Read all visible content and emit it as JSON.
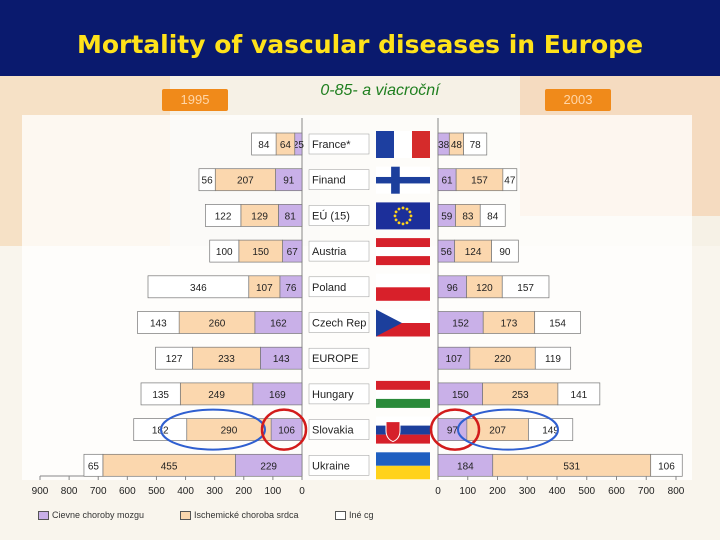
{
  "title": "Mortality of vascular diseases in Europe",
  "subtitle": "0-85- a viacroční",
  "year_left": "1995",
  "year_right": "2003",
  "colors": {
    "cerebro": "#c9b0e8",
    "ischemic": "#fbd7ae",
    "other": "#ffffff",
    "title_bg": "#0a1a6e",
    "title_fg": "#ffe21a",
    "highlight_red": "#d21b1b",
    "highlight_blue": "#2f5fd0"
  },
  "legend": [
    {
      "label": "Cievne choroby mozgu",
      "color": "#c9b0e8"
    },
    {
      "label": "Ischemické choroba srdca",
      "color": "#fbd7ae"
    },
    {
      "label": "Iné cg",
      "color": "#ffffff"
    }
  ],
  "chart_data": {
    "type": "bar",
    "orientation": "horizontal-stacked-butterfly",
    "categories": [
      "France*",
      "Finand",
      "EÚ (15)",
      "Austria",
      "Poland",
      "Czech Rep",
      "EUROPE",
      "Hungary",
      "Slovakia",
      "Ukraine"
    ],
    "flags": [
      "france",
      "finland",
      "eu",
      "austria",
      "poland",
      "czech",
      "none",
      "hungary",
      "slovakia",
      "ukraine"
    ],
    "series_colors": [
      "#c9b0e8",
      "#fbd7ae",
      "#ffffff"
    ],
    "left": {
      "year": "1995",
      "xlim": [
        900,
        0
      ],
      "ticks": [
        "900",
        "800",
        "700",
        "600",
        "500",
        "400",
        "300",
        "200",
        "100",
        "0"
      ],
      "values": [
        {
          "cerebro": 25,
          "ischemic": 64,
          "other": 84
        },
        {
          "cerebro": 91,
          "ischemic": 207,
          "other": 56
        },
        {
          "cerebro": 81,
          "ischemic": 129,
          "other": 122
        },
        {
          "cerebro": 67,
          "ischemic": 150,
          "other": 100
        },
        {
          "cerebro": 76,
          "ischemic": 107,
          "other": 346
        },
        {
          "cerebro": 162,
          "ischemic": 260,
          "other": 143
        },
        {
          "cerebro": 143,
          "ischemic": 233,
          "other": 127
        },
        {
          "cerebro": 169,
          "ischemic": 249,
          "other": 135
        },
        {
          "cerebro": 106,
          "ischemic": 290,
          "other": 182
        },
        {
          "cerebro": 229,
          "ischemic": 455,
          "other": 65
        }
      ]
    },
    "right": {
      "year": "2003",
      "xlim": [
        0,
        800
      ],
      "ticks": [
        "0",
        "100",
        "200",
        "300",
        "400",
        "500",
        "600",
        "700",
        "800"
      ],
      "values": [
        {
          "cerebro": 38,
          "ischemic": 48,
          "other": 78
        },
        {
          "cerebro": 61,
          "ischemic": 157,
          "other": 47
        },
        {
          "cerebro": 59,
          "ischemic": 83,
          "other": 84
        },
        {
          "cerebro": 56,
          "ischemic": 124,
          "other": 90
        },
        {
          "cerebro": 96,
          "ischemic": 120,
          "other": 157
        },
        {
          "cerebro": 152,
          "ischemic": 173,
          "other": 154
        },
        {
          "cerebro": 107,
          "ischemic": 220,
          "other": 119
        },
        {
          "cerebro": 150,
          "ischemic": 253,
          "other": 141
        },
        {
          "cerebro": 97,
          "ischemic": 207,
          "other": 149
        },
        {
          "cerebro": 184,
          "ischemic": 531,
          "other": 106
        }
      ]
    },
    "highlight_row": "Slovakia"
  }
}
